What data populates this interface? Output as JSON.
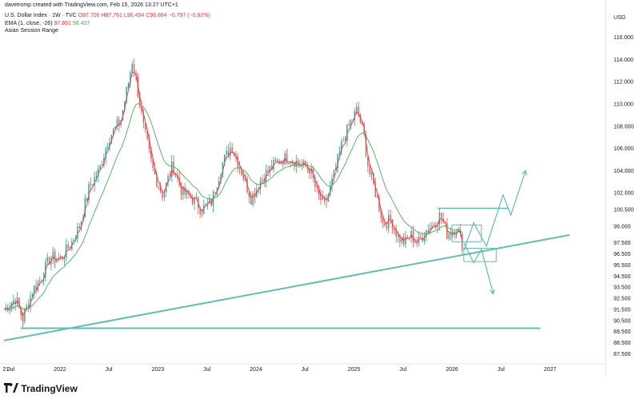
{
  "header": {
    "created_by": "davetromp created with TradingView.com, Feb 15, 2026 13:27 UTC+1",
    "symbol": "U.S. Dollar Index · 1W · TVC",
    "open": "O97.700",
    "high": "H97.761",
    "low": "L96.494",
    "close": "C96.884",
    "change": "−0.797 (−0.82%)",
    "ema_label": "EMA (1, close, -26)",
    "ema_value_1": "97.861",
    "ema_value_2": "98.407",
    "session_label": "Asian Session Range"
  },
  "footer": {
    "brand": "TradingView"
  },
  "colors": {
    "up": "#26a69a",
    "down": "#ef5350",
    "ema": "#4caf50",
    "drawing": "#5fbfb0",
    "ema_short": "#f23645"
  },
  "chart_data": {
    "type": "candlestick",
    "currency_label": "USD",
    "y_ticks": [
      "116.000",
      "114.000",
      "112.000",
      "110.000",
      "108.000",
      "106.000",
      "104.000",
      "102.000",
      "100.500",
      "99.000",
      "97.500",
      "96.500",
      "95.500",
      "94.500",
      "93.500",
      "92.500",
      "91.500",
      "90.500",
      "89.500",
      "88.500",
      "87.500"
    ],
    "ylim": [
      86.6,
      117.2
    ],
    "x_ticks": [
      "21",
      "Jul",
      "2022",
      "Jul",
      "2023",
      "Jul",
      "2024",
      "Jul",
      "2025",
      "Jul",
      "2026",
      "Jul",
      "2027"
    ],
    "x_tick_values": [
      2021.45,
      2021.5,
      2022.0,
      2022.5,
      2023.0,
      2023.5,
      2024.0,
      2024.5,
      2025.0,
      2025.5,
      2026.0,
      2026.5,
      2027.0
    ],
    "xlim": [
      2021.43,
      2027.55
    ],
    "price_path": [
      [
        2021.43,
        91.5
      ],
      [
        2021.55,
        92.5
      ],
      [
        2021.62,
        90.6
      ],
      [
        2021.72,
        93.2
      ],
      [
        2021.8,
        94.2
      ],
      [
        2021.9,
        96.2
      ],
      [
        2022.0,
        96.0
      ],
      [
        2022.1,
        97.2
      ],
      [
        2022.2,
        99.0
      ],
      [
        2022.3,
        102.5
      ],
      [
        2022.4,
        104.0
      ],
      [
        2022.5,
        107.0
      ],
      [
        2022.62,
        108.5
      ],
      [
        2022.7,
        112.0
      ],
      [
        2022.74,
        114.0
      ],
      [
        2022.78,
        112.0
      ],
      [
        2022.85,
        108.0
      ],
      [
        2022.95,
        104.0
      ],
      [
        2023.05,
        101.8
      ],
      [
        2023.15,
        104.5
      ],
      [
        2023.25,
        102.0
      ],
      [
        2023.35,
        101.5
      ],
      [
        2023.45,
        100.5
      ],
      [
        2023.55,
        101.2
      ],
      [
        2023.65,
        104.5
      ],
      [
        2023.75,
        106.3
      ],
      [
        2023.85,
        104.0
      ],
      [
        2023.95,
        101.5
      ],
      [
        2024.05,
        103.2
      ],
      [
        2024.15,
        104.2
      ],
      [
        2024.25,
        105.0
      ],
      [
        2024.35,
        105.2
      ],
      [
        2024.45,
        104.5
      ],
      [
        2024.55,
        104.2
      ],
      [
        2024.62,
        102.0
      ],
      [
        2024.7,
        100.8
      ],
      [
        2024.78,
        103.0
      ],
      [
        2024.88,
        106.5
      ],
      [
        2024.95,
        108.0
      ],
      [
        2025.03,
        109.5
      ],
      [
        2025.1,
        107.2
      ],
      [
        2025.15,
        104.0
      ],
      [
        2025.22,
        102.0
      ],
      [
        2025.3,
        99.2
      ],
      [
        2025.38,
        99.6
      ],
      [
        2025.45,
        98.0
      ],
      [
        2025.52,
        97.5
      ],
      [
        2025.58,
        98.2
      ],
      [
        2025.65,
        97.4
      ],
      [
        2025.72,
        98.5
      ],
      [
        2025.8,
        99.1
      ],
      [
        2025.88,
        100.0
      ],
      [
        2025.95,
        98.3
      ],
      [
        2026.05,
        98.9
      ],
      [
        2026.12,
        96.9
      ]
    ],
    "overlays": {
      "trendline": [
        [
          2021.43,
          88.7
        ],
        [
          2027.2,
          98.2
        ]
      ],
      "horizontal_support": [
        [
          2021.6,
          89.8
        ],
        [
          2026.9,
          89.8
        ]
      ],
      "resistance_line": [
        [
          2025.85,
          100.6
        ],
        [
          2026.58,
          100.6
        ]
      ],
      "projection_up": [
        [
          2026.12,
          96.8
        ],
        [
          2026.22,
          99.3
        ],
        [
          2026.35,
          97.2
        ],
        [
          2026.52,
          101.8
        ],
        [
          2026.6,
          100.0
        ],
        [
          2026.75,
          104.0
        ]
      ],
      "projection_down": [
        [
          2026.12,
          97.5
        ],
        [
          2026.22,
          95.7
        ],
        [
          2026.3,
          96.9
        ],
        [
          2026.42,
          92.9
        ]
      ],
      "box_upper": [
        [
          2026.0,
          99.1
        ],
        [
          2026.3,
          97.6
        ]
      ],
      "box_lower": [
        [
          2026.12,
          97.0
        ],
        [
          2026.45,
          95.8
        ]
      ]
    },
    "grid": false,
    "legend": "top-left"
  }
}
